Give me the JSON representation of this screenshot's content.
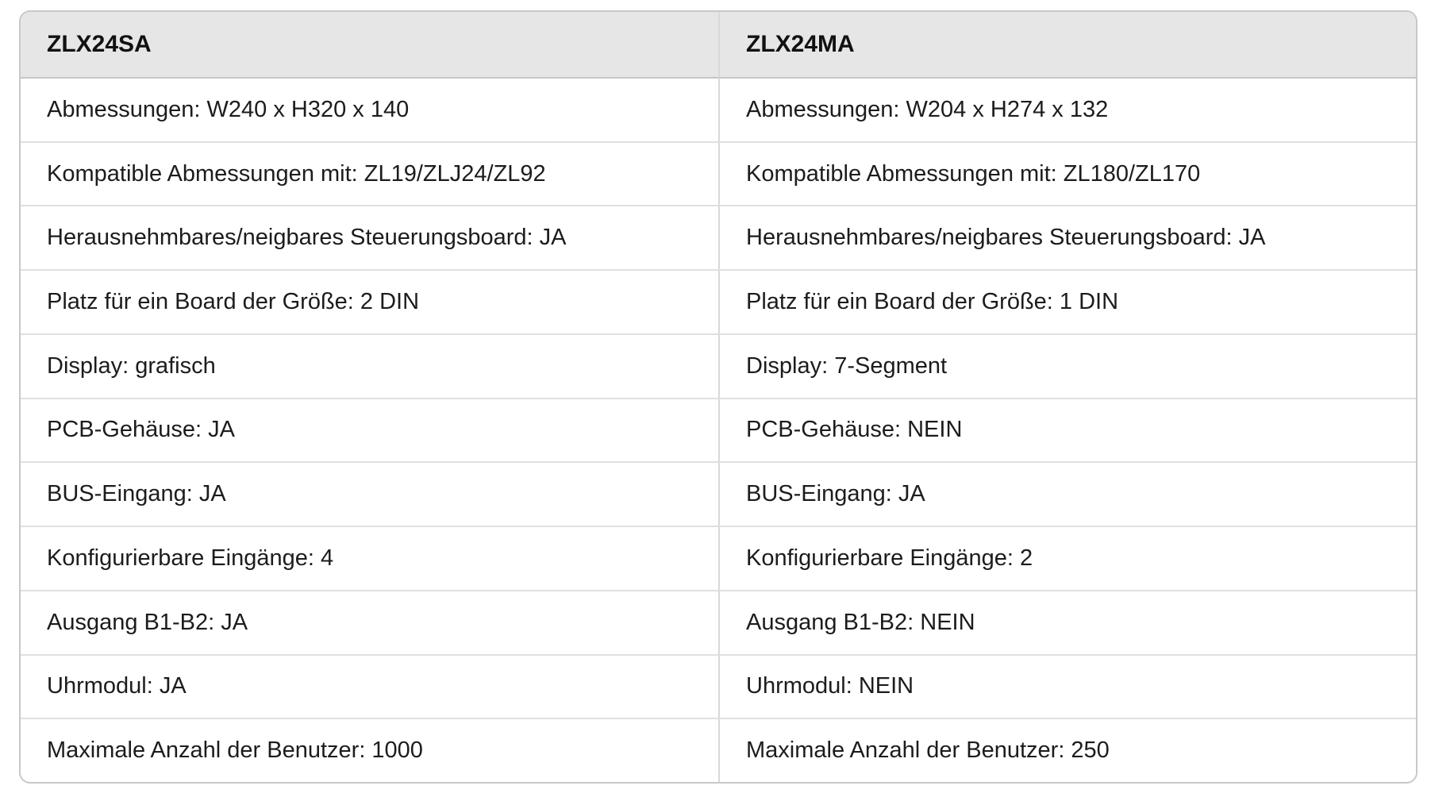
{
  "table": {
    "colors": {
      "header_bg": "#e6e6e6",
      "row_bg": "#ffffff",
      "outer_border": "#c8c8c8",
      "inner_border": "#e0e0e0",
      "text": "#1c1c1c"
    },
    "columns": [
      {
        "header": "ZLX24SA",
        "rows": [
          "Abmessungen: W240 x H320 x 140",
          "Kompatible Abmessungen mit: ZL19/ZLJ24/ZL92",
          "Herausnehmbares/neigbares Steuerungsboard: JA",
          "Platz für ein Board der Größe: 2 DIN",
          "Display: grafisch",
          "PCB-Gehäuse: JA",
          "BUS-Eingang: JA",
          "Konfigurierbare Eingänge: 4",
          "Ausgang B1-B2: JA",
          "Uhrmodul: JA",
          "Maximale Anzahl der Benutzer: 1000"
        ]
      },
      {
        "header": "ZLX24MA",
        "rows": [
          "Abmessungen: W204 x H274 x 132",
          "Kompatible Abmessungen mit: ZL180/ZL170",
          "Herausnehmbares/neigbares Steuerungsboard: JA",
          "Platz für ein Board der Größe: 1 DIN",
          "Display: 7-Segment",
          "PCB-Gehäuse: NEIN",
          "BUS-Eingang: JA",
          "Konfigurierbare Eingänge: 2",
          "Ausgang B1-B2: NEIN",
          "Uhrmodul: NEIN",
          "Maximale Anzahl der Benutzer: 250"
        ]
      }
    ]
  }
}
